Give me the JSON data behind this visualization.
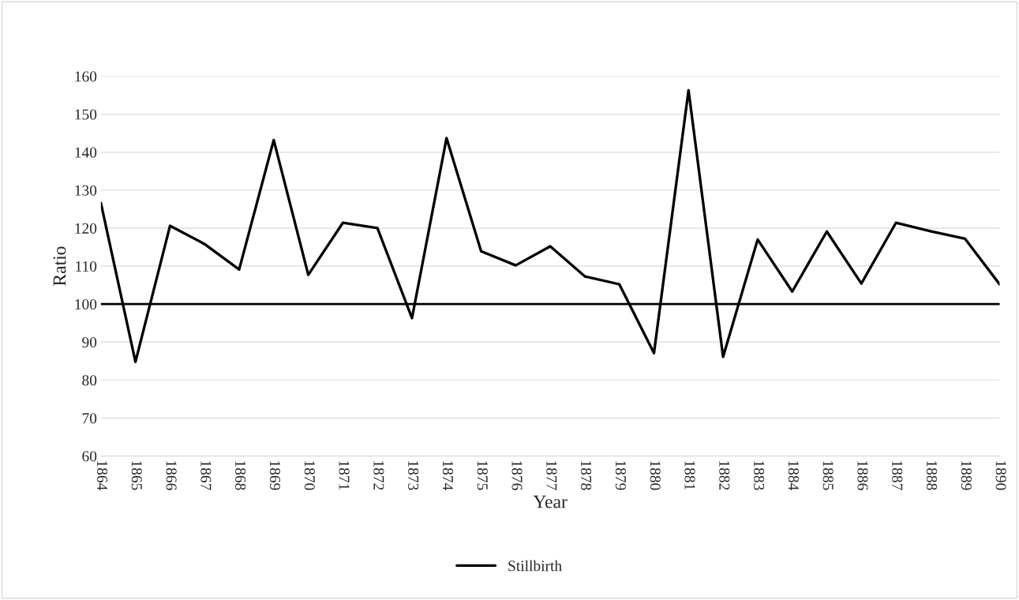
{
  "chart_data": {
    "type": "line",
    "xlabel": "Year",
    "ylabel": "Ratio",
    "categories": [
      "1864",
      "1865",
      "1866",
      "1867",
      "1868",
      "1869",
      "1870",
      "1871",
      "1872",
      "1873",
      "1874",
      "1875",
      "1876",
      "1877",
      "1878",
      "1879",
      "1880",
      "1881",
      "1882",
      "1883",
      "1884",
      "1885",
      "1886",
      "1887",
      "1888",
      "1889",
      "1890"
    ],
    "series": [
      {
        "name": "Stillbirth",
        "color": "#000000",
        "values": [
          126.6,
          84.8,
          120.6,
          115.8,
          109.1,
          143.2,
          107.7,
          121.4,
          120.0,
          96.3,
          143.7,
          113.9,
          110.2,
          115.2,
          107.3,
          105.2,
          87.1,
          156.3,
          86.1,
          117.0,
          103.3,
          119.1,
          105.4,
          121.4,
          119.2,
          117.2,
          105.2
        ]
      }
    ],
    "ylim": [
      60,
      160
    ],
    "yticks": [
      60,
      70,
      80,
      90,
      100,
      110,
      120,
      130,
      140,
      150,
      160
    ],
    "ref_lines": [
      {
        "axis": "y",
        "value": 100,
        "color": "#000000"
      }
    ],
    "grid": "y",
    "legend": "bottom",
    "marker": "none",
    "line_style": "solid"
  }
}
